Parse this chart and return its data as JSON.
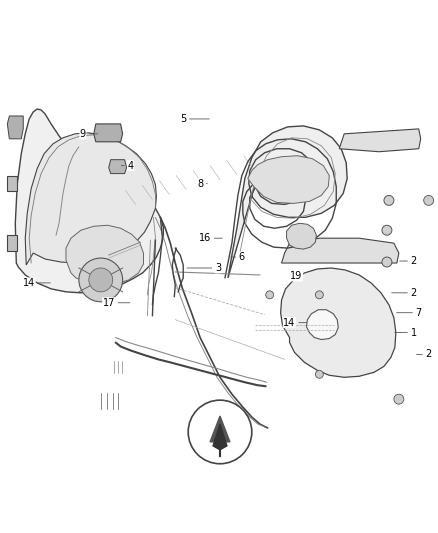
{
  "bg_color": "#ffffff",
  "fig_width": 4.38,
  "fig_height": 5.33,
  "dpi": 100,
  "line_color": "#444444",
  "line_color2": "#888888",
  "label_color": "#000000"
}
